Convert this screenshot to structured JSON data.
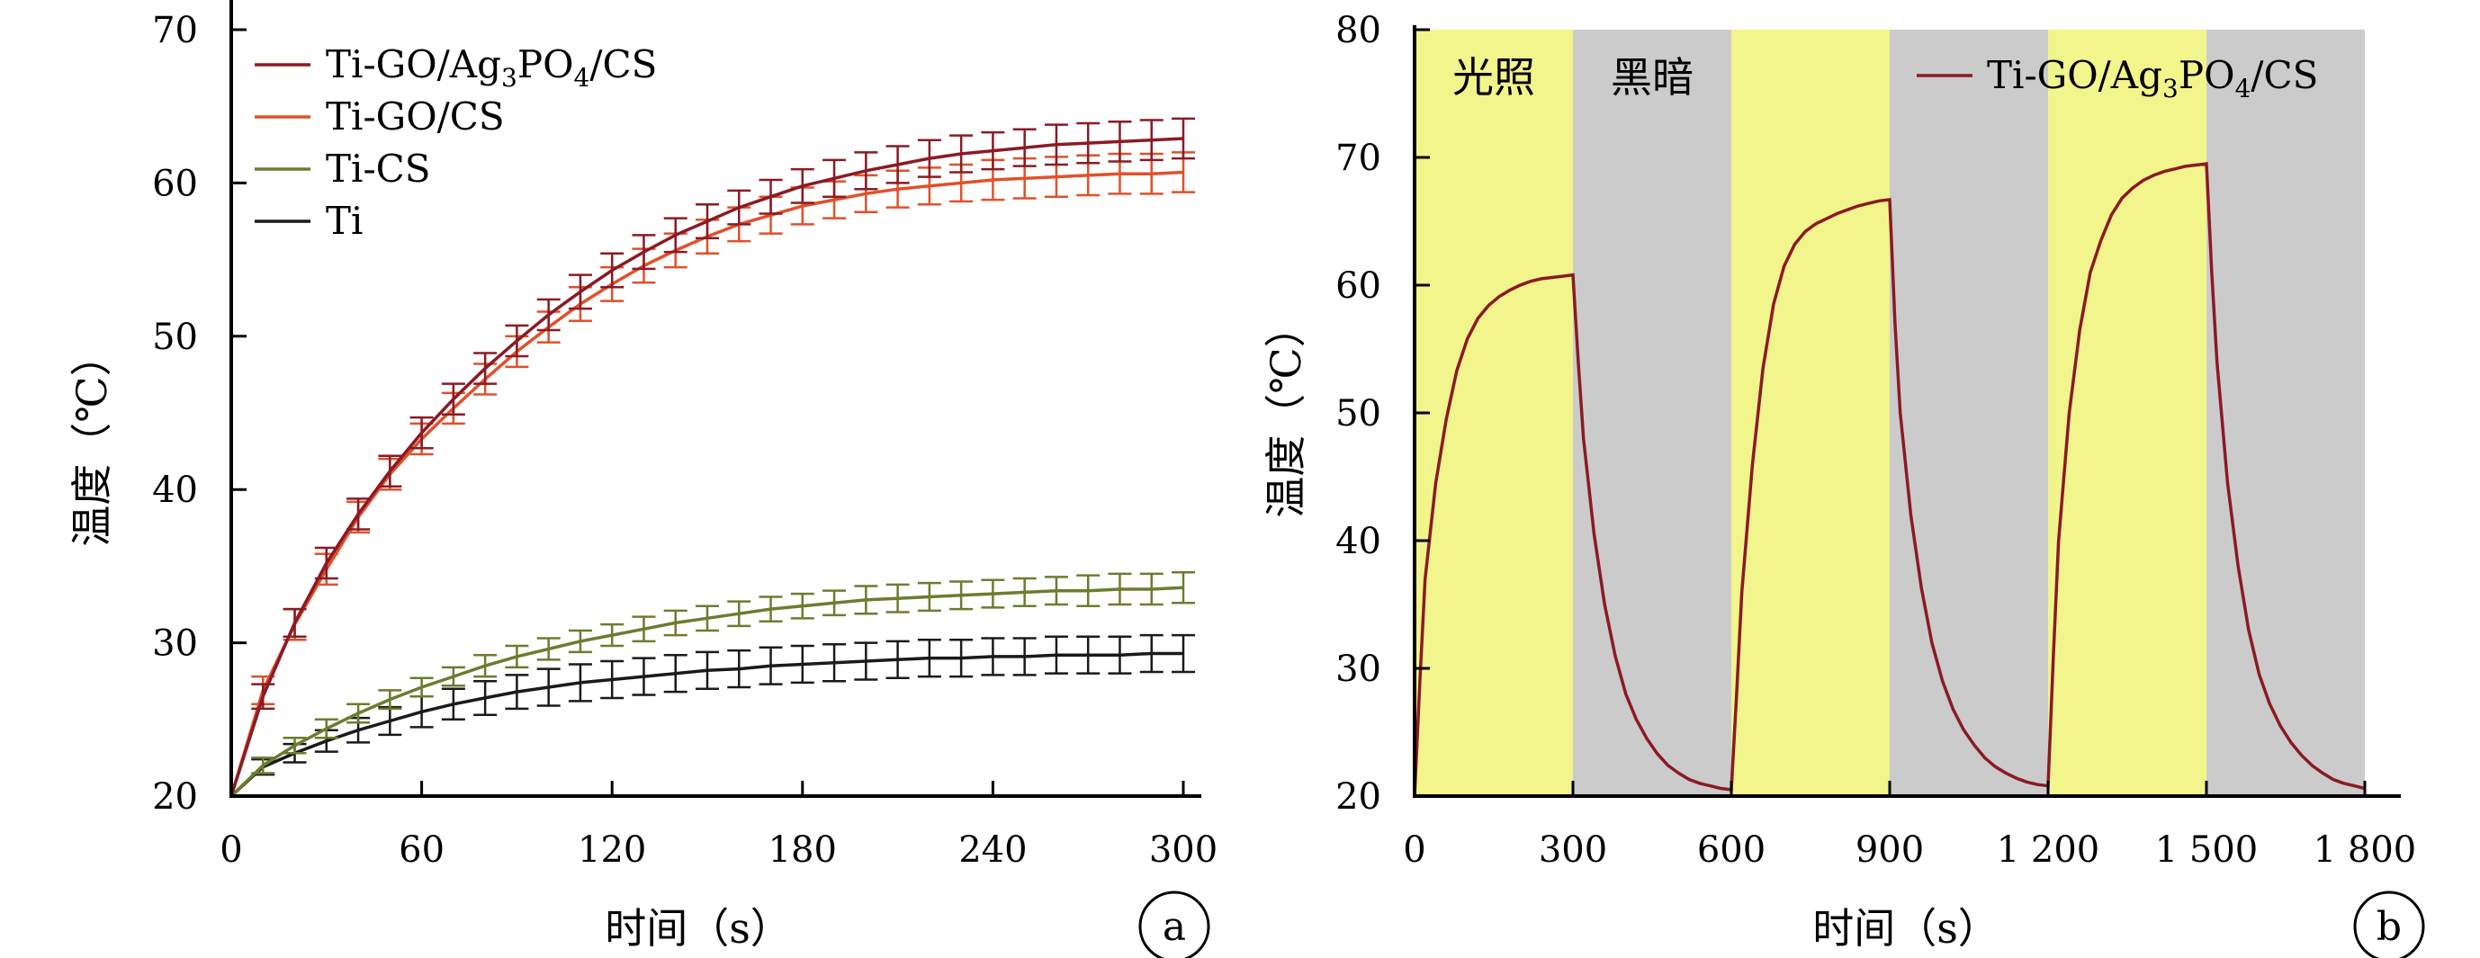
{
  "chart_data": [
    {
      "panel": "a",
      "type": "line",
      "xlabel": "时间（s）",
      "ylabel": "温度（℃）",
      "xlim": [
        0,
        300
      ],
      "ylim": [
        20,
        70
      ],
      "xticks": [
        "0",
        "60",
        "120",
        "180",
        "240",
        "300"
      ],
      "yticks": [
        "20",
        "30",
        "40",
        "50",
        "60",
        "70"
      ],
      "legend_position": "top-left",
      "grid": false,
      "error_bars": true,
      "series": [
        {
          "name": "Ti-GO/Ag3PO4/CS",
          "name_parts": {
            "a": "Ti-GO/Ag",
            "s1": "3",
            "b": "PO",
            "s2": "4",
            "c": "/CS"
          },
          "color": "#8B1A24",
          "x": [
            0,
            10,
            20,
            30,
            40,
            50,
            60,
            70,
            80,
            90,
            100,
            110,
            120,
            130,
            140,
            150,
            160,
            170,
            180,
            190,
            200,
            210,
            220,
            230,
            240,
            250,
            260,
            270,
            280,
            290,
            300
          ],
          "y": [
            20,
            26.5,
            31.3,
            35.2,
            38.4,
            41.2,
            43.7,
            45.9,
            47.9,
            49.7,
            51.4,
            52.9,
            54.3,
            55.5,
            56.6,
            57.5,
            58.4,
            59.1,
            59.8,
            60.3,
            60.8,
            61.2,
            61.6,
            61.9,
            62.1,
            62.3,
            62.5,
            62.6,
            62.7,
            62.8,
            62.9
          ],
          "err": [
            0,
            0.8,
            0.9,
            1.0,
            1.0,
            1.0,
            1.0,
            1.0,
            1.0,
            1.0,
            1.0,
            1.1,
            1.1,
            1.1,
            1.1,
            1.1,
            1.1,
            1.1,
            1.1,
            1.2,
            1.2,
            1.2,
            1.2,
            1.2,
            1.2,
            1.2,
            1.3,
            1.3,
            1.3,
            1.3,
            1.3
          ]
        },
        {
          "name": "Ti-GO/CS",
          "name_parts": {
            "a": "Ti-GO/CS"
          },
          "color": "#E0502A",
          "x": [
            0,
            10,
            20,
            30,
            40,
            50,
            60,
            70,
            80,
            90,
            100,
            110,
            120,
            130,
            140,
            150,
            160,
            170,
            180,
            190,
            200,
            210,
            220,
            230,
            240,
            250,
            260,
            270,
            280,
            290,
            300
          ],
          "y": [
            20,
            26.9,
            31.2,
            34.8,
            38.2,
            41.0,
            43.3,
            45.3,
            47.2,
            49.0,
            50.6,
            52.1,
            53.4,
            54.6,
            55.6,
            56.5,
            57.3,
            57.9,
            58.5,
            58.9,
            59.3,
            59.6,
            59.8,
            60.0,
            60.2,
            60.3,
            60.4,
            60.5,
            60.6,
            60.6,
            60.7
          ],
          "err": [
            0,
            0.9,
            1.0,
            1.0,
            1.0,
            1.0,
            1.0,
            1.0,
            1.0,
            1.0,
            1.0,
            1.1,
            1.1,
            1.1,
            1.1,
            1.1,
            1.1,
            1.2,
            1.2,
            1.2,
            1.2,
            1.2,
            1.2,
            1.2,
            1.3,
            1.3,
            1.3,
            1.3,
            1.3,
            1.3,
            1.3
          ]
        },
        {
          "name": "Ti-CS",
          "name_parts": {
            "a": "Ti-CS"
          },
          "color": "#6B7D2E",
          "x": [
            0,
            10,
            20,
            30,
            40,
            50,
            60,
            70,
            80,
            90,
            100,
            110,
            120,
            130,
            140,
            150,
            160,
            170,
            180,
            190,
            200,
            210,
            220,
            230,
            240,
            250,
            260,
            270,
            280,
            290,
            300
          ],
          "y": [
            20,
            22.0,
            23.3,
            24.4,
            25.4,
            26.3,
            27.1,
            27.8,
            28.5,
            29.1,
            29.6,
            30.1,
            30.5,
            30.9,
            31.3,
            31.6,
            31.9,
            32.2,
            32.4,
            32.6,
            32.8,
            32.9,
            33.0,
            33.1,
            33.2,
            33.3,
            33.4,
            33.4,
            33.5,
            33.5,
            33.6
          ],
          "err": [
            0,
            0.5,
            0.5,
            0.6,
            0.6,
            0.6,
            0.6,
            0.6,
            0.7,
            0.7,
            0.7,
            0.7,
            0.7,
            0.8,
            0.8,
            0.8,
            0.8,
            0.8,
            0.8,
            0.8,
            0.9,
            0.9,
            0.9,
            0.9,
            0.9,
            0.9,
            0.9,
            1.0,
            1.0,
            1.0,
            1.0
          ]
        },
        {
          "name": "Ti",
          "name_parts": {
            "a": "Ti"
          },
          "color": "#1A1A1A",
          "x": [
            0,
            10,
            20,
            30,
            40,
            50,
            60,
            70,
            80,
            90,
            100,
            110,
            120,
            130,
            140,
            150,
            160,
            170,
            180,
            190,
            200,
            210,
            220,
            230,
            240,
            250,
            260,
            270,
            280,
            290,
            300
          ],
          "y": [
            20,
            21.9,
            22.8,
            23.6,
            24.3,
            24.9,
            25.5,
            26.0,
            26.4,
            26.8,
            27.1,
            27.4,
            27.6,
            27.8,
            28.0,
            28.2,
            28.3,
            28.5,
            28.6,
            28.7,
            28.8,
            28.9,
            29.0,
            29.0,
            29.1,
            29.1,
            29.2,
            29.2,
            29.2,
            29.3,
            29.3
          ],
          "err": [
            0,
            0.5,
            0.6,
            0.7,
            0.8,
            0.9,
            1.0,
            1.0,
            1.1,
            1.1,
            1.2,
            1.2,
            1.2,
            1.2,
            1.2,
            1.2,
            1.2,
            1.2,
            1.2,
            1.2,
            1.2,
            1.2,
            1.2,
            1.2,
            1.2,
            1.2,
            1.2,
            1.2,
            1.2,
            1.2,
            1.2
          ]
        }
      ]
    },
    {
      "panel": "b",
      "type": "line",
      "xlabel": "时间（s）",
      "ylabel": "温度（℃）",
      "xlim": [
        0,
        1800
      ],
      "ylim": [
        20,
        80
      ],
      "xticks": [
        "0",
        "300",
        "600",
        "900",
        "1 200",
        "1 500",
        "1 800"
      ],
      "yticks": [
        "20",
        "30",
        "40",
        "50",
        "60",
        "70",
        "80"
      ],
      "legend_position": "top-right",
      "grid": false,
      "bands": [
        {
          "from": 0,
          "to": 300,
          "label": "光照",
          "color": "#F2F48C"
        },
        {
          "from": 300,
          "to": 600,
          "label": "黑暗",
          "color": "#CBCBCB"
        },
        {
          "from": 600,
          "to": 900,
          "label": "",
          "color": "#F2F48C"
        },
        {
          "from": 900,
          "to": 1200,
          "label": "",
          "color": "#CBCBCB"
        },
        {
          "from": 1200,
          "to": 1500,
          "label": "",
          "color": "#F2F48C"
        },
        {
          "from": 1500,
          "to": 1800,
          "label": "",
          "color": "#CBCBCB"
        }
      ],
      "series": [
        {
          "name": "Ti-GO/Ag3PO4/CS",
          "name_parts": {
            "a": "Ti-GO/Ag",
            "s1": "3",
            "b": "PO",
            "s2": "4",
            "c": "/CS"
          },
          "color": "#8B1A24",
          "x": [
            0,
            10,
            20,
            40,
            60,
            80,
            100,
            120,
            140,
            160,
            180,
            200,
            220,
            240,
            260,
            280,
            300,
            310,
            320,
            340,
            360,
            380,
            400,
            420,
            440,
            460,
            480,
            500,
            520,
            540,
            560,
            580,
            600,
            610,
            620,
            640,
            660,
            680,
            700,
            720,
            740,
            760,
            780,
            800,
            820,
            840,
            860,
            880,
            900,
            910,
            920,
            940,
            960,
            980,
            1000,
            1020,
            1040,
            1060,
            1080,
            1100,
            1120,
            1140,
            1160,
            1180,
            1200,
            1210,
            1220,
            1240,
            1260,
            1280,
            1300,
            1320,
            1340,
            1360,
            1380,
            1400,
            1420,
            1440,
            1460,
            1480,
            1500,
            1510,
            1520,
            1540,
            1560,
            1580,
            1600,
            1620,
            1640,
            1660,
            1680,
            1700,
            1720,
            1740,
            1760,
            1780,
            1800
          ],
          "y": [
            20,
            29,
            37,
            44.5,
            49.5,
            53.3,
            55.8,
            57.4,
            58.4,
            59.1,
            59.6,
            60.0,
            60.3,
            60.5,
            60.6,
            60.7,
            60.8,
            54,
            48,
            40.5,
            35,
            31,
            28,
            26,
            24.5,
            23.3,
            22.4,
            21.8,
            21.3,
            21.0,
            20.8,
            20.6,
            20.5,
            28,
            36,
            46,
            53.5,
            58.5,
            61.5,
            63.2,
            64.2,
            64.8,
            65.2,
            65.6,
            65.9,
            66.2,
            66.4,
            66.6,
            66.7,
            57,
            50,
            42,
            36.3,
            32,
            29,
            26.8,
            25.2,
            24.0,
            23.0,
            22.3,
            21.8,
            21.4,
            21.1,
            20.9,
            20.8,
            31,
            40,
            50,
            56.5,
            61,
            63.5,
            65.5,
            66.8,
            67.6,
            68.2,
            68.6,
            68.9,
            69.1,
            69.3,
            69.4,
            69.5,
            61,
            54,
            44.5,
            38,
            33,
            29.5,
            27.2,
            25.5,
            24.2,
            23.2,
            22.4,
            21.8,
            21.3,
            21.0,
            20.8,
            20.6
          ]
        }
      ]
    }
  ],
  "panel_labels": {
    "a": "a",
    "b": "b"
  }
}
